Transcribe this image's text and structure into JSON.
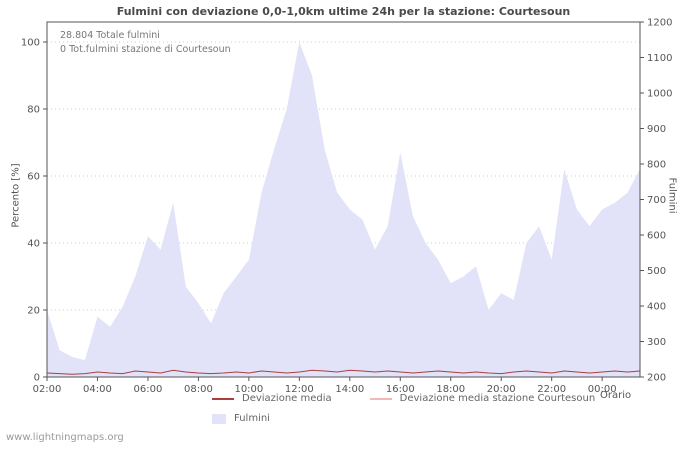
{
  "chart_data": {
    "type": "area",
    "title": "Fulmini con deviazione 0,0-1,0km ultime 24h per la stazione: Courtesoun",
    "annotations": [
      "28.804 Totale fulmini",
      "0 Tot.fulmini stazione di Courtesoun"
    ],
    "ylabel_left": "Percento   [%]",
    "ylabel_right": "Fulmini",
    "xlabel": "Orario",
    "ylim_left": [
      0,
      100
    ],
    "ylim_right": [
      200,
      1200
    ],
    "grid": true,
    "y_left_ticks": [
      0,
      20,
      40,
      60,
      80,
      100
    ],
    "y_right_ticks": [
      200,
      300,
      400,
      500,
      600,
      700,
      800,
      900,
      1000,
      1100,
      1200
    ],
    "x_tick_labels": [
      "02:00",
      "04:00",
      "06:00",
      "08:00",
      "10:00",
      "12:00",
      "14:00",
      "16:00",
      "18:00",
      "20:00",
      "22:00",
      "00:00"
    ],
    "x_tick_indices": [
      0,
      4,
      8,
      12,
      16,
      20,
      24,
      28,
      32,
      36,
      40,
      44
    ],
    "x": [
      "02:00",
      "02:30",
      "03:00",
      "03:30",
      "04:00",
      "04:30",
      "05:00",
      "05:30",
      "06:00",
      "06:30",
      "07:00",
      "07:30",
      "08:00",
      "08:30",
      "09:00",
      "09:30",
      "10:00",
      "10:30",
      "11:00",
      "11:30",
      "12:00",
      "12:30",
      "13:00",
      "13:30",
      "14:00",
      "14:30",
      "15:00",
      "15:30",
      "16:00",
      "16:30",
      "17:00",
      "17:30",
      "18:00",
      "18:30",
      "19:00",
      "19:30",
      "20:00",
      "20:30",
      "21:00",
      "21:30",
      "22:00",
      "22:30",
      "23:00",
      "23:30",
      "00:00",
      "00:30",
      "01:00",
      "01:30"
    ],
    "series": [
      {
        "name": "Fulmini",
        "type": "area",
        "color": "#e2e2f8",
        "values": [
          20,
          8,
          6,
          5,
          18,
          15,
          21,
          30,
          42,
          38,
          52,
          27,
          22,
          16,
          25,
          30,
          35,
          55,
          68,
          80,
          100,
          90,
          68,
          55,
          50,
          47,
          38,
          45,
          67,
          48,
          40,
          35,
          28,
          30,
          33,
          20,
          25,
          23,
          40,
          45,
          35,
          62,
          50,
          45,
          50,
          52,
          55,
          62
        ]
      },
      {
        "name": "Deviazione media",
        "type": "line",
        "color": "#a84040",
        "values": [
          1.2,
          1,
          0.8,
          1,
          1.5,
          1.2,
          1,
          1.8,
          1.5,
          1.2,
          2,
          1.5,
          1.2,
          1,
          1.2,
          1.5,
          1.2,
          1.8,
          1.5,
          1.2,
          1.5,
          2,
          1.8,
          1.5,
          2,
          1.8,
          1.5,
          1.8,
          1.5,
          1.2,
          1.5,
          1.8,
          1.5,
          1.2,
          1.5,
          1.2,
          1,
          1.5,
          1.8,
          1.5,
          1.2,
          1.8,
          1.5,
          1.2,
          1.5,
          1.8,
          1.5,
          1.8
        ]
      },
      {
        "name": "Deviazione media stazione Courtesoun",
        "type": "line",
        "color": "#f2b8b8",
        "values": [
          0,
          0,
          0,
          0,
          0,
          0,
          0,
          0,
          0,
          0,
          0,
          0,
          0,
          0,
          0,
          0,
          0,
          0,
          0,
          0,
          0,
          0,
          0,
          0,
          0,
          0,
          0,
          0,
          0,
          0,
          0,
          0,
          0,
          0,
          0,
          0,
          0,
          0,
          0,
          0,
          0,
          0,
          0,
          0,
          0,
          0,
          0,
          0
        ]
      }
    ]
  },
  "legend": {
    "items": [
      {
        "label": "Deviazione media",
        "color": "#a84040",
        "swatch": "line"
      },
      {
        "label": "Deviazione media stazione Courtesoun",
        "color": "#f2b8b8",
        "swatch": "line"
      },
      {
        "label": "Fulmini",
        "color": "#e2e2f8",
        "swatch": "area"
      }
    ]
  },
  "footer": {
    "watermark": "www.lightningmaps.org"
  },
  "colors": {
    "frame": "#555555",
    "grid": "#cfcfcf",
    "text": "#555555"
  }
}
